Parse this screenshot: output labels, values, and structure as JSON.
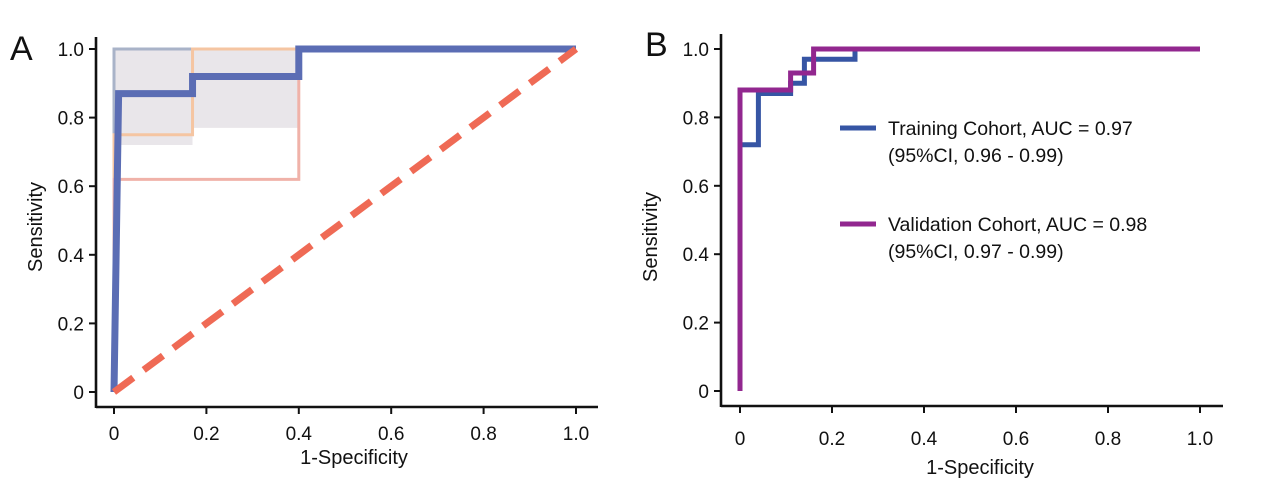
{
  "figure": {
    "panels": [
      {
        "letter": "A",
        "xlabel": "1-Specificity",
        "ylabel": "Sensitivity"
      },
      {
        "letter": "B",
        "xlabel": "1-Specificity",
        "ylabel": "Sensitivity"
      }
    ],
    "legend_B": [
      {
        "line1": "Training Cohort, AUC = 0.97",
        "line2": "(95%CI, 0.96 - 0.99)",
        "color": "#3655a4"
      },
      {
        "line1": "Validation Cohort, AUC = 0.98",
        "line2": "(95%CI, 0.97 - 0.99)",
        "color": "#92278f"
      }
    ]
  },
  "chart_data": [
    {
      "type": "line",
      "panel": "A",
      "title": "",
      "xlabel": "1-Specificity",
      "ylabel": "Sensitivity",
      "xlim": [
        0,
        1.0
      ],
      "ylim": [
        0,
        1.0
      ],
      "x_ticks": [
        "0",
        "0.2",
        "0.4",
        "0.6",
        "0.8",
        "1.0"
      ],
      "y_ticks": [
        "0",
        "0.2",
        "0.4",
        "0.6",
        "0.8",
        "1.0"
      ],
      "grid": false,
      "confidence_band": {
        "color": "#e9e6ea",
        "x": [
          0.0,
          0.17,
          0.17,
          0.4,
          0.4,
          1.0
        ],
        "lower": [
          0.72,
          0.72,
          0.77,
          0.77,
          1.0,
          1.0
        ],
        "upper": [
          1.0,
          1.0,
          1.0,
          1.0,
          1.0,
          1.0
        ]
      },
      "series": [
        {
          "role": "upper-bound",
          "color": "#a9b3c8",
          "width": 3,
          "points": [
            [
              0,
              0
            ],
            [
              0,
              1.0
            ],
            [
              1.0,
              1.0
            ]
          ]
        },
        {
          "role": "bound",
          "color": "#f5c5a2",
          "width": 3,
          "points": [
            [
              0,
              0
            ],
            [
              0,
              0.75
            ],
            [
              0.17,
              0.75
            ],
            [
              0.17,
              1.0
            ],
            [
              1.0,
              1.0
            ]
          ]
        },
        {
          "role": "lower-bound",
          "color": "#f0b2a9",
          "width": 3,
          "points": [
            [
              0,
              0
            ],
            [
              0,
              0.62
            ],
            [
              0.4,
              0.62
            ],
            [
              0.4,
              1.0
            ],
            [
              1.0,
              1.0
            ]
          ]
        },
        {
          "role": "roc",
          "color": "#5b6db4",
          "width": 7,
          "points": [
            [
              0,
              0
            ],
            [
              0.01,
              0.87
            ],
            [
              0.17,
              0.87
            ],
            [
              0.17,
              0.92
            ],
            [
              0.4,
              0.92
            ],
            [
              0.4,
              1.0
            ],
            [
              1.0,
              1.0
            ]
          ]
        },
        {
          "role": "reference",
          "color": "#ef6a55",
          "width": 7,
          "dashed": true,
          "points": [
            [
              0,
              0
            ],
            [
              1.0,
              1.0
            ]
          ]
        }
      ]
    },
    {
      "type": "line",
      "panel": "B",
      "title": "",
      "xlabel": "1-Specificity",
      "ylabel": "Sensitivity",
      "xlim": [
        0,
        1.0
      ],
      "ylim": [
        0,
        1.0
      ],
      "x_ticks": [
        "0",
        "0.2",
        "0.4",
        "0.6",
        "0.8",
        "1.0"
      ],
      "y_ticks": [
        "0",
        "0.2",
        "0.4",
        "0.6",
        "0.8",
        "1.0"
      ],
      "grid": false,
      "legend_position": "right",
      "series": [
        {
          "name": "Training Cohort, AUC = 0.97",
          "color": "#3655a4",
          "width": 5,
          "points": [
            [
              0,
              0.72
            ],
            [
              0.04,
              0.72
            ],
            [
              0.04,
              0.87
            ],
            [
              0.11,
              0.87
            ],
            [
              0.11,
              0.9
            ],
            [
              0.14,
              0.9
            ],
            [
              0.14,
              0.97
            ],
            [
              0.25,
              0.97
            ],
            [
              0.25,
              1.0
            ],
            [
              1.0,
              1.0
            ]
          ]
        },
        {
          "name": "Validation Cohort, AUC = 0.98",
          "color": "#92278f",
          "width": 5,
          "points": [
            [
              0,
              0
            ],
            [
              0,
              0.88
            ],
            [
              0.11,
              0.88
            ],
            [
              0.11,
              0.93
            ],
            [
              0.16,
              0.93
            ],
            [
              0.16,
              1.0
            ],
            [
              1.0,
              1.0
            ]
          ]
        }
      ]
    }
  ]
}
